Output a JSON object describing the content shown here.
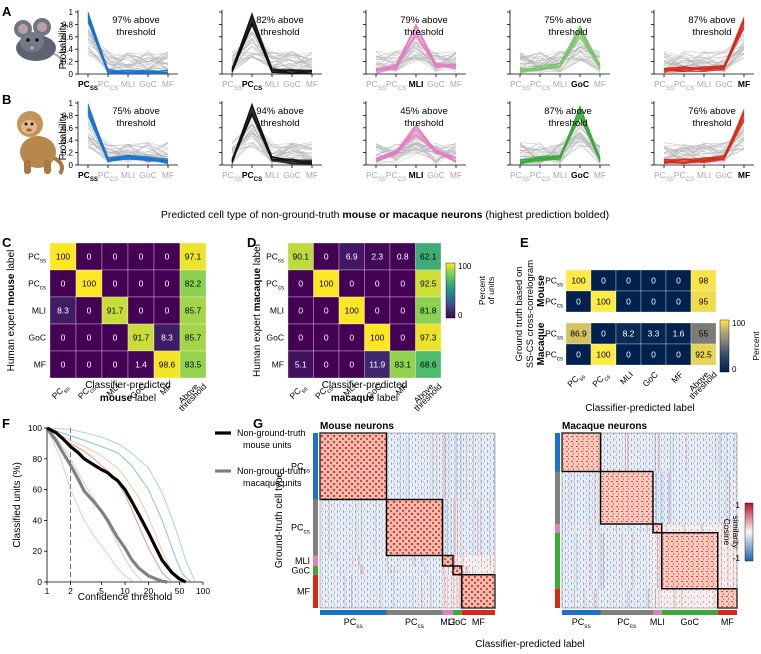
{
  "panel_letters": [
    "A",
    "B",
    "C",
    "D",
    "E",
    "F",
    "G"
  ],
  "panel_ab": {
    "ylabel": "Probability",
    "yticks": [
      "0",
      "0.2",
      "0.4",
      "0.6",
      "0.8",
      "1"
    ],
    "ticks_main": [
      "PC",
      "PC",
      "MLI",
      "GoC",
      "MF"
    ],
    "ticks_sub": [
      "SS",
      "CS",
      "",
      "",
      ""
    ],
    "caption_prefix": "Predicted cell type of non-ground-truth ",
    "caption_bold": "mouse or macaque neurons",
    "caption_suffix": " (highest prediction bolded)",
    "line2": "threshold"
  },
  "chart_data": [
    {
      "type": "line",
      "panel": "A",
      "species": "mouse",
      "ylim": [
        0,
        1
      ],
      "categories": [
        "PCss",
        "PCcs",
        "MLI",
        "GoC",
        "MF"
      ],
      "subpanels": [
        {
          "predicted": "PCss",
          "color": "#1a73c8",
          "annotation": "97% above",
          "mean": [
            0.93,
            0.04,
            0.03,
            0.03,
            0.03
          ]
        },
        {
          "predicted": "PCcs",
          "color": "#111111",
          "annotation": "82% above",
          "mean": [
            0.05,
            0.88,
            0.06,
            0.04,
            0.03
          ]
        },
        {
          "predicted": "MLI",
          "color": "#e07fbf",
          "annotation": "79% above",
          "mean": [
            0.05,
            0.12,
            0.7,
            0.14,
            0.12
          ]
        },
        {
          "predicted": "GoC",
          "color": "#7ec26e",
          "annotation": "75% above",
          "mean": [
            0.06,
            0.1,
            0.14,
            0.68,
            0.12
          ]
        },
        {
          "predicted": "MF",
          "color": "#d42a1a",
          "annotation": "87% above",
          "mean": [
            0.06,
            0.08,
            0.08,
            0.1,
            0.82
          ]
        }
      ]
    },
    {
      "type": "line",
      "panel": "B",
      "species": "macaque",
      "ylim": [
        0,
        1
      ],
      "categories": [
        "PCss",
        "PCcs",
        "MLI",
        "GoC",
        "MF"
      ],
      "subpanels": [
        {
          "predicted": "PCss",
          "color": "#1a73c8",
          "annotation": "75% above",
          "mean": [
            0.9,
            0.08,
            0.12,
            0.1,
            0.06
          ]
        },
        {
          "predicted": "PCcs",
          "color": "#111111",
          "annotation": "94% above",
          "mean": [
            0.06,
            0.9,
            0.1,
            0.06,
            0.04
          ]
        },
        {
          "predicted": "MLI",
          "color": "#e07fbf",
          "annotation": "45% above",
          "mean": [
            0.08,
            0.2,
            0.55,
            0.22,
            0.08
          ]
        },
        {
          "predicted": "GoC",
          "color": "#3aa83a",
          "annotation": "87% above",
          "mean": [
            0.05,
            0.1,
            0.12,
            0.85,
            0.08
          ]
        },
        {
          "predicted": "MF",
          "color": "#d42a1a",
          "annotation": "76% above",
          "mean": [
            0.06,
            0.06,
            0.08,
            0.12,
            0.8
          ]
        }
      ]
    },
    {
      "type": "heatmap",
      "panel": "C",
      "ylabel_prefix": "Human expert ",
      "ylabel_bold": "mouse",
      "ylabel_suffix": " label",
      "xlabel_prefix": "Classifier-predicted",
      "xlabel_bold": "mouse",
      "xlabel_suffix": " label",
      "rows": [
        "PCss",
        "PCcs",
        "MLI",
        "GoC",
        "MF"
      ],
      "cols": [
        "PCss",
        "PCcs",
        "MLI",
        "GoC",
        "MF",
        "Above threshold"
      ],
      "values": [
        [
          100,
          0,
          0,
          0,
          0,
          97.1
        ],
        [
          0,
          100,
          0,
          0,
          0,
          82.2
        ],
        [
          8.3,
          0,
          91.7,
          0,
          0,
          85.7
        ],
        [
          0,
          0,
          0,
          91.7,
          8.3,
          85.7
        ],
        [
          0,
          0,
          0,
          1.4,
          98.6,
          83.5
        ]
      ],
      "colorbar": {
        "min": "0",
        "max": "100",
        "label1": "Percent",
        "label2": "of units"
      }
    },
    {
      "type": "heatmap",
      "panel": "D",
      "ylabel_prefix": "Human expert ",
      "ylabel_bold": "macaque",
      "ylabel_suffix": " label",
      "xlabel_prefix": "Classifier-predicted",
      "xlabel_bold": "macaque",
      "xlabel_suffix": " label",
      "rows": [
        "PCss",
        "PCcs",
        "MLI",
        "GoC",
        "MF"
      ],
      "cols": [
        "PCss",
        "PCcs",
        "MLI",
        "GoC",
        "MF",
        "Above threshold"
      ],
      "values": [
        [
          90.1,
          0,
          6.9,
          2.3,
          0.8,
          62.1
        ],
        [
          0,
          100,
          0,
          0,
          0,
          92.5
        ],
        [
          0,
          0,
          100,
          0,
          0,
          81.8
        ],
        [
          0,
          0,
          0,
          100,
          0,
          97.3
        ],
        [
          5.1,
          0,
          0,
          11.9,
          83.1,
          68.6
        ]
      ],
      "colorbar": {
        "min": "0",
        "max": "100",
        "label1": "Percent",
        "label2": "of units"
      }
    },
    {
      "type": "heatmap",
      "panel": "E",
      "ylabel1": "Ground truth based on",
      "ylabel2": "SS-CS cross-correlogram",
      "xlabel": "Classifier-predicted label",
      "species_labels": [
        "Mouse",
        "Macaque"
      ],
      "rows": [
        "PCss",
        "PCcs"
      ],
      "cols": [
        "PCss",
        "PCcs",
        "MLI",
        "GoC",
        "MF",
        "Above threshold"
      ],
      "values_mouse": [
        [
          100,
          0,
          0,
          0,
          0,
          98
        ],
        [
          0,
          100,
          0,
          0,
          0,
          95
        ]
      ],
      "values_macaque": [
        [
          86.9,
          0,
          8.2,
          3.3,
          1.6,
          55
        ],
        [
          0,
          100,
          0,
          0,
          0,
          92.5
        ]
      ],
      "colorbar": {
        "min": "0",
        "max": "100",
        "label1": "Percent",
        "label2": "of units"
      }
    },
    {
      "type": "line",
      "panel": "F",
      "xlabel": "Confidence threshold",
      "ylabel": "Classified units (%)",
      "xscale": "log",
      "xlim": [
        1,
        100
      ],
      "ylim": [
        0,
        100
      ],
      "xticks": [
        "1",
        "2",
        "5",
        "10",
        "20",
        "50",
        "100"
      ],
      "yticks": [
        "0",
        "20",
        "40",
        "60",
        "80",
        "100"
      ],
      "dashed_x": 2,
      "legend": [
        {
          "label1": "Non-ground-truth",
          "label2": "mouse units",
          "color": "#000000"
        },
        {
          "label1": "Non-ground-truth",
          "label2": "macaque units",
          "color": "#808080"
        }
      ],
      "series": [
        {
          "color": "#000000",
          "width": 3.2,
          "x": [
            1,
            1.3,
            1.6,
            2,
            2.5,
            3,
            4,
            5,
            6,
            7,
            8,
            10,
            12,
            15,
            20,
            25,
            30,
            40,
            50,
            60
          ],
          "y": [
            100,
            97,
            93,
            88,
            84,
            80,
            76,
            73,
            71,
            68,
            66,
            60,
            53,
            44,
            32,
            22,
            14,
            6,
            2,
            0
          ]
        },
        {
          "color": "#808080",
          "width": 3.2,
          "x": [
            1,
            1.3,
            1.6,
            2,
            2.5,
            3,
            4,
            5,
            6,
            7,
            8,
            10,
            12,
            15,
            20,
            25,
            30,
            35
          ],
          "y": [
            100,
            92,
            84,
            76,
            67,
            59,
            52,
            46,
            40,
            34,
            29,
            22,
            15,
            9,
            4,
            2,
            0.5,
            0
          ]
        },
        {
          "color": "#1a73c8",
          "width": 1.1,
          "opacity": 0.45,
          "x": [
            1,
            2,
            3,
            5,
            8,
            12,
            20,
            30,
            45,
            55,
            70
          ],
          "y": [
            100,
            95,
            92,
            88,
            84,
            76,
            60,
            40,
            15,
            5,
            0
          ]
        },
        {
          "color": "#e07fbf",
          "width": 1.1,
          "opacity": 0.45,
          "x": [
            1,
            1.5,
            2,
            3,
            4,
            6,
            8,
            10,
            13
          ],
          "y": [
            100,
            80,
            60,
            40,
            30,
            18,
            9,
            4,
            0
          ]
        },
        {
          "color": "#7ec26e",
          "width": 1.1,
          "opacity": 0.45,
          "x": [
            1,
            1.5,
            2,
            3,
            4,
            6,
            8,
            10,
            13,
            17
          ],
          "y": [
            100,
            90,
            80,
            64,
            54,
            38,
            25,
            15,
            6,
            0
          ]
        },
        {
          "color": "#d42a1a",
          "width": 1.1,
          "opacity": 0.45,
          "x": [
            1,
            2,
            3,
            4,
            6,
            8,
            10,
            14,
            20,
            30,
            40
          ],
          "y": [
            100,
            90,
            85,
            80,
            72,
            65,
            57,
            40,
            22,
            6,
            0
          ]
        },
        {
          "color": "#f0a97a",
          "width": 1.1,
          "opacity": 0.6,
          "x": [
            1,
            2,
            3,
            5,
            8,
            10,
            15,
            20,
            30,
            40,
            50
          ],
          "y": [
            100,
            92,
            88,
            82,
            74,
            68,
            55,
            42,
            20,
            6,
            0
          ]
        },
        {
          "color": "#8faee0",
          "width": 1.1,
          "opacity": 0.6,
          "x": [
            1,
            2,
            3,
            5,
            8,
            12,
            20,
            30,
            45,
            60,
            80
          ],
          "y": [
            100,
            99,
            97,
            94,
            90,
            84,
            74,
            58,
            34,
            14,
            0
          ]
        }
      ]
    },
    {
      "type": "heatmap",
      "panel": "G",
      "ylabel": "Ground-truth cell type",
      "xlabel": "Classifier-predicted label",
      "titles": [
        "Mouse neurons",
        "Macaque neurons"
      ],
      "row_labels": [
        "PCss",
        "PCcs",
        "MLI",
        "GoC",
        "MF"
      ],
      "group_colors": [
        "#1a73c8",
        "#808080",
        "#e07fbf",
        "#3aa83a",
        "#d42a1a"
      ],
      "mouse_fractions": [
        0.38,
        0.32,
        0.06,
        0.05,
        0.19
      ],
      "macaque_fractions": [
        0.22,
        0.3,
        0.05,
        0.32,
        0.11
      ],
      "colorbar": {
        "min": "-1",
        "max": "1",
        "label1": "Cosine",
        "label2": "similarity"
      }
    }
  ]
}
